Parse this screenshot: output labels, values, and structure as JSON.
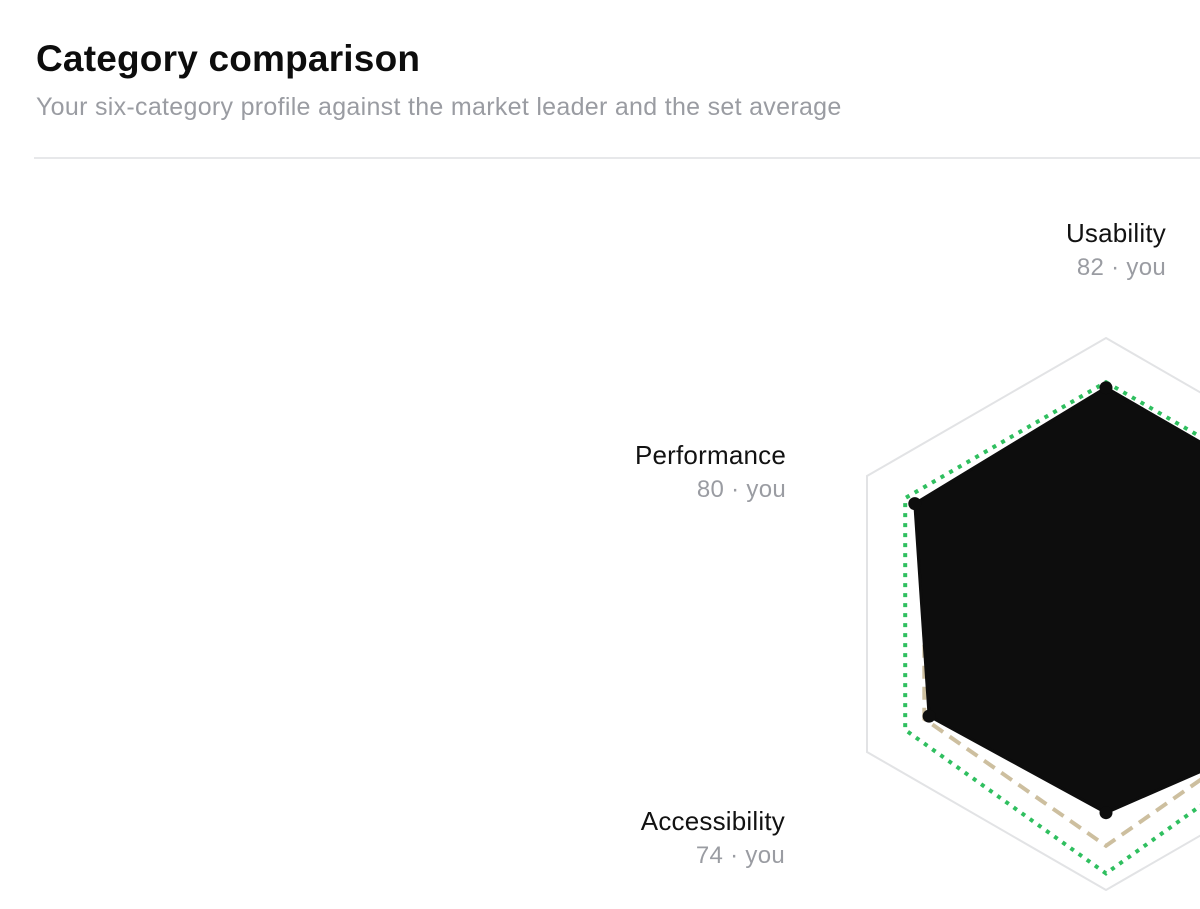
{
  "header": {
    "title": "Category comparison",
    "subtitle": "Your six-category profile against the market leader and the set average"
  },
  "chart_data": {
    "type": "radar",
    "title": "Category comparison",
    "subtitle": "Your six-category profile against the market leader and the set average",
    "axes": [
      {
        "category": "Usability",
        "value_label": "82 · you"
      },
      {
        "category": "",
        "value_label": ""
      },
      {
        "category": "",
        "value_label": ""
      },
      {
        "category": "",
        "value_label": ""
      },
      {
        "category": "Accessibility",
        "value_label": "74 · you"
      },
      {
        "category": "Performance",
        "value_label": "80 · you"
      }
    ],
    "range": [
      0,
      100
    ],
    "series": [
      {
        "key": "you",
        "values": [
          82,
          null,
          null,
          72,
          74,
          80
        ],
        "color": "#0d0d0d",
        "style": "solid-fill"
      },
      {
        "key": "leader",
        "values": [
          null,
          null,
          null,
          94,
          84,
          84
        ],
        "color": "#2fbf5f",
        "style": "dotted"
      },
      {
        "key": "average",
        "values": [
          null,
          null,
          null,
          84,
          76,
          76
        ],
        "color": "#cdbf9f",
        "style": "dashed"
      }
    ],
    "grid": true
  }
}
